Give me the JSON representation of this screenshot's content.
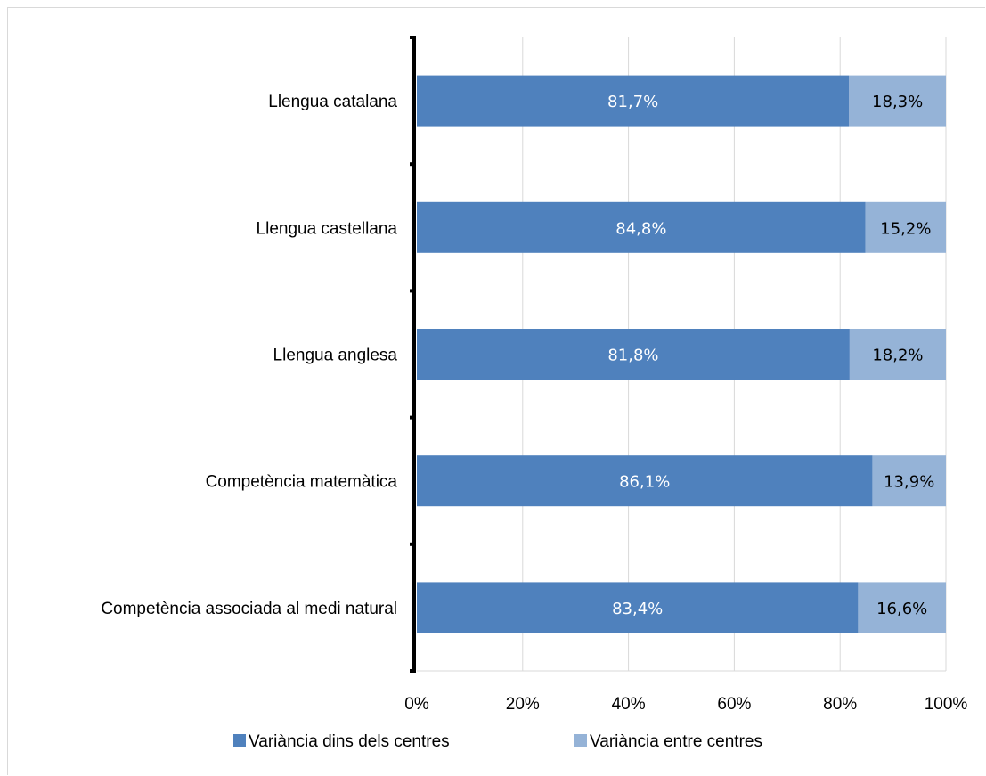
{
  "chart_data": {
    "type": "bar",
    "orientation": "horizontal",
    "stacked": "percent",
    "categories": [
      "Llengua catalana",
      "Llengua castellana",
      "Llengua anglesa",
      "Competència matemàtica",
      "Competència associada al medi natural"
    ],
    "series": [
      {
        "name": "Variància dins dels centres",
        "color": "#4f81bd",
        "label_color": "#ffffff",
        "values": [
          81.7,
          84.8,
          81.8,
          86.1,
          83.4
        ],
        "labels": [
          "81,7%",
          "84,8%",
          "81,8%",
          "86,1%",
          "83,4%"
        ]
      },
      {
        "name": "Variància entre centres",
        "color": "#95b3d7",
        "label_color": "#000000",
        "values": [
          18.3,
          15.2,
          18.2,
          13.9,
          16.6
        ],
        "labels": [
          "18,3%",
          "15,2%",
          "18,2%",
          "13,9%",
          "16,6%"
        ]
      }
    ],
    "x_ticks": [
      "0%",
      "20%",
      "40%",
      "60%",
      "80%",
      "100%"
    ],
    "xlim": [
      0,
      100
    ],
    "gridlines": "vertical",
    "legend_position": "bottom"
  }
}
